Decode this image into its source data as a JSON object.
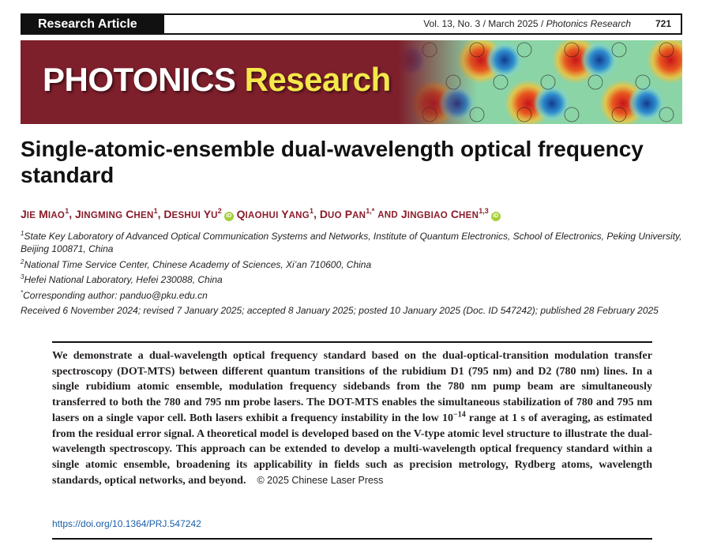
{
  "header": {
    "section": "Research Article",
    "volume_info": "Vol. 13, No. 3 / March 2025 / ",
    "journal": "Photonics Research",
    "page_number": "721"
  },
  "banner": {
    "title_part1": "PHOTONICS",
    "title_part2": "Research"
  },
  "article": {
    "title": "Single-atomic-ensemble dual-wavelength optical frequency standard",
    "authors": [
      {
        "first": "J",
        "first_sc": "IE",
        "last": "M",
        "last_sc": "IAO",
        "sup": "1"
      },
      {
        "first": "J",
        "first_sc": "INGMING",
        "last": "C",
        "last_sc": "HEN",
        "sup": "1"
      },
      {
        "first": "D",
        "first_sc": "ESHUI",
        "last": "Y",
        "last_sc": "U",
        "sup": "2"
      },
      {
        "first": "Q",
        "first_sc": "IAOHUI",
        "last": "Y",
        "last_sc": "ANG",
        "sup": "1"
      },
      {
        "first": "D",
        "first_sc": "UO",
        "last": "P",
        "last_sc": "AN",
        "sup": "1,*"
      },
      {
        "first": "J",
        "first_sc": "INGBIAO",
        "last": "C",
        "last_sc": "HEN",
        "sup": "1,3"
      }
    ],
    "author_and": "AND",
    "orcid_label": "iD",
    "affiliations": [
      {
        "sup": "1",
        "text": "State Key Laboratory of Advanced Optical Communication Systems and Networks, Institute of Quantum Electronics, School of Electronics, Peking University, Beijing 100871, China"
      },
      {
        "sup": "2",
        "text": "National Time Service Center, Chinese Academy of Sciences, Xi’an 710600, China"
      },
      {
        "sup": "3",
        "text": "Hefei National Laboratory, Hefei 230088, China"
      },
      {
        "sup": "*",
        "text": "Corresponding author: panduo@pku.edu.cn"
      }
    ],
    "history": "Received 6 November 2024; revised 7 January 2025; accepted 8 January 2025; posted 10 January 2025 (Doc. ID 547242); published 28 February 2025",
    "abstract_before_exp": "We demonstrate a dual-wavelength optical frequency standard based on the dual-optical-transition modulation transfer spectroscopy (DOT-MTS) between different quantum transitions of the rubidium D1 (795 nm) and D2 (780 nm) lines. In a single rubidium atomic ensemble, modulation frequency sidebands from the 780 nm pump beam are simultaneously transferred to both the 780 and 795 nm probe lasers. The DOT-MTS enables the simultaneous stabilization of 780 and 795 nm lasers on a single vapor cell. Both lasers exhibit a frequency instability in the low 10",
    "abstract_exponent": "−14",
    "abstract_after_exp": " range at 1 s of averaging, as estimated from the residual error signal. A theoretical model is developed based on the V-type atomic level structure to illustrate the dual-wavelength spectroscopy. This approach can be extended to develop a multi-wavelength optical frequency standard within a single atomic ensemble, broadening its applicability in fields such as precision metrology, Rydberg atoms, wavelength standards, optical networks, and beyond.",
    "copyright": "© 2025 Chinese Laser Press",
    "doi": "https://doi.org/10.1364/PRJ.547242"
  }
}
